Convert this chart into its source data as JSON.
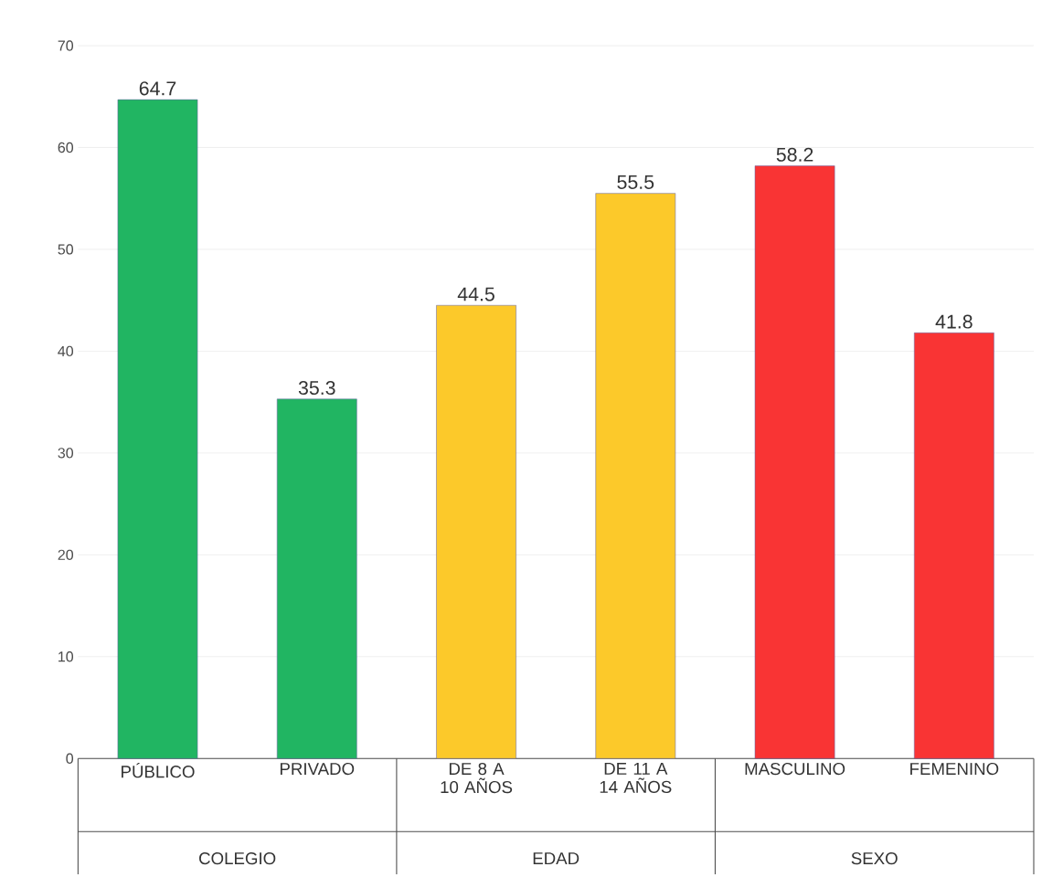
{
  "chart_data": {
    "type": "bar",
    "categories": [
      "PÚBLICO",
      "PRIVADO",
      "DE 8 A 10 AÑOS",
      "DE 11 A 14 AÑOS",
      "MASCULINO",
      "FEMENINO"
    ],
    "values": [
      64.7,
      35.3,
      44.5,
      55.5,
      58.2,
      41.8
    ],
    "colors": [
      "#21b562",
      "#21b562",
      "#fcc92a",
      "#fcc92a",
      "#f93434",
      "#f93434"
    ],
    "annotations": [
      "COLEGIO",
      "EDAD",
      "SEXO"
    ],
    "ylim": [
      0,
      70
    ],
    "yticks": [
      0,
      10,
      20,
      30,
      40,
      50,
      60,
      70
    ],
    "grid": "y",
    "data_labels": true
  }
}
